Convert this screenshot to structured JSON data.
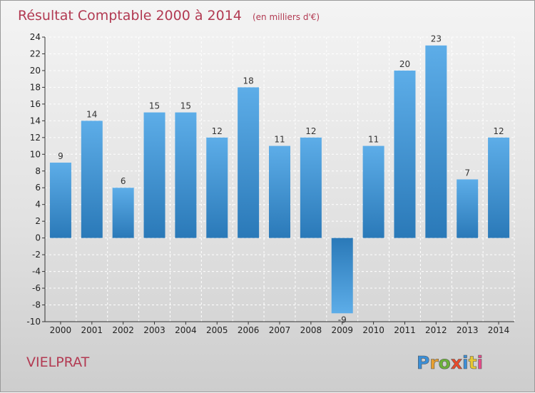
{
  "chart_data": {
    "type": "bar",
    "title": "Résultat Comptable 2000 à 2014",
    "subtitle": "(en milliers d'€)",
    "categories": [
      "2000",
      "2001",
      "2002",
      "2003",
      "2004",
      "2005",
      "2006",
      "2007",
      "2008",
      "2009",
      "2010",
      "2011",
      "2012",
      "2013",
      "2014"
    ],
    "values": [
      9,
      14,
      6,
      15,
      15,
      12,
      18,
      11,
      12,
      -9,
      11,
      20,
      23,
      7,
      12
    ],
    "ylim": [
      -10,
      24
    ],
    "yticks": [
      -10,
      -8,
      -6,
      -4,
      -2,
      0,
      2,
      4,
      6,
      8,
      10,
      12,
      14,
      16,
      18,
      20,
      22,
      24
    ],
    "grid": true,
    "xlabel": "",
    "ylabel": ""
  },
  "footer": {
    "place": "VIELPRAT",
    "brand": "Proxiti"
  },
  "colors": {
    "bar_light": "#5dade8",
    "bar_dark": "#2a79b8",
    "title": "#b23a52",
    "axis": "#333333"
  }
}
